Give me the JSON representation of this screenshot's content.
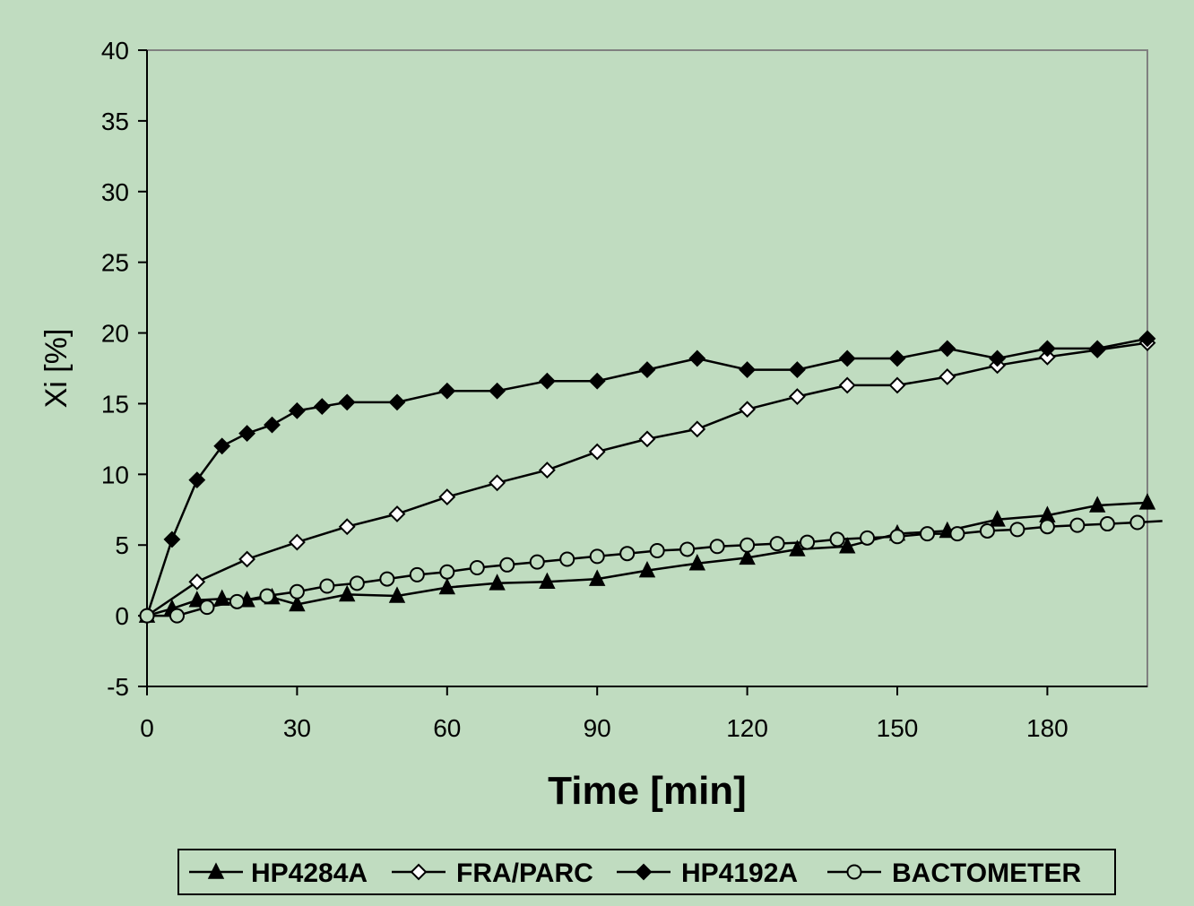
{
  "colors": {
    "background": "#c0dcc0",
    "plot_background": "#c0dcc0",
    "ink": "#000000",
    "gridline": "#808080"
  },
  "chart_data": {
    "type": "line",
    "title": "",
    "xlabel": "Time [min]",
    "ylabel": "Xi [%]",
    "xlim": [
      0,
      200
    ],
    "ylim": [
      -5,
      40
    ],
    "x_ticks": [
      0,
      30,
      60,
      90,
      120,
      150,
      180
    ],
    "y_ticks": [
      -5,
      0,
      5,
      10,
      15,
      20,
      25,
      30,
      35,
      40
    ],
    "x_tick_labels": [
      "0",
      "30",
      "60",
      "90",
      "120",
      "150",
      "180"
    ],
    "y_tick_labels": [
      "-5",
      "0",
      "5",
      "10",
      "15",
      "20",
      "25",
      "30",
      "35",
      "40"
    ],
    "grid": false,
    "legend_position": "bottom",
    "series": [
      {
        "name": "HP4284A",
        "marker": "filled-triangle",
        "points": [
          [
            0,
            0
          ],
          [
            5,
            0.5
          ],
          [
            10,
            1.1
          ],
          [
            15,
            1.2
          ],
          [
            20,
            1.1
          ],
          [
            25,
            1.3
          ],
          [
            30,
            0.8
          ],
          [
            40,
            1.5
          ],
          [
            50,
            1.4
          ],
          [
            60,
            2.0
          ],
          [
            70,
            2.3
          ],
          [
            80,
            2.4
          ],
          [
            90,
            2.6
          ],
          [
            100,
            3.2
          ],
          [
            110,
            3.7
          ],
          [
            120,
            4.1
          ],
          [
            130,
            4.7
          ],
          [
            140,
            4.9
          ],
          [
            150,
            5.8
          ],
          [
            160,
            6.0
          ],
          [
            170,
            6.8
          ],
          [
            180,
            7.1
          ],
          [
            190,
            7.8
          ],
          [
            200,
            8.0
          ]
        ]
      },
      {
        "name": "FRA/PARC",
        "marker": "open-diamond",
        "points": [
          [
            0,
            0
          ],
          [
            10,
            2.4
          ],
          [
            20,
            4.0
          ],
          [
            30,
            5.2
          ],
          [
            40,
            6.3
          ],
          [
            50,
            7.2
          ],
          [
            60,
            8.4
          ],
          [
            70,
            9.4
          ],
          [
            80,
            10.3
          ],
          [
            90,
            11.6
          ],
          [
            100,
            12.5
          ],
          [
            110,
            13.2
          ],
          [
            120,
            14.6
          ],
          [
            130,
            15.5
          ],
          [
            140,
            16.3
          ],
          [
            150,
            16.3
          ],
          [
            160,
            16.9
          ],
          [
            170,
            17.7
          ],
          [
            180,
            18.3
          ],
          [
            190,
            18.8
          ],
          [
            200,
            19.3
          ]
        ]
      },
      {
        "name": "HP4192A",
        "marker": "filled-diamond",
        "points": [
          [
            0,
            0
          ],
          [
            5,
            5.4
          ],
          [
            10,
            9.6
          ],
          [
            15,
            12.0
          ],
          [
            20,
            12.9
          ],
          [
            25,
            13.5
          ],
          [
            30,
            14.5
          ],
          [
            35,
            14.8
          ],
          [
            40,
            15.1
          ],
          [
            50,
            15.1
          ],
          [
            60,
            15.9
          ],
          [
            70,
            15.9
          ],
          [
            80,
            16.6
          ],
          [
            90,
            16.6
          ],
          [
            100,
            17.4
          ],
          [
            110,
            18.2
          ],
          [
            120,
            17.4
          ],
          [
            130,
            17.4
          ],
          [
            140,
            18.2
          ],
          [
            150,
            18.2
          ],
          [
            160,
            18.9
          ],
          [
            170,
            18.2
          ],
          [
            180,
            18.9
          ],
          [
            190,
            18.9
          ],
          [
            200,
            19.6
          ]
        ]
      },
      {
        "name": "BACTOMETER",
        "marker": "open-circle",
        "points": [
          [
            0,
            0
          ],
          [
            6,
            0
          ],
          [
            12,
            0.6
          ],
          [
            18,
            1.0
          ],
          [
            24,
            1.4
          ],
          [
            30,
            1.7
          ],
          [
            36,
            2.1
          ],
          [
            42,
            2.3
          ],
          [
            48,
            2.6
          ],
          [
            54,
            2.9
          ],
          [
            60,
            3.1
          ],
          [
            66,
            3.4
          ],
          [
            72,
            3.6
          ],
          [
            78,
            3.8
          ],
          [
            84,
            4.0
          ],
          [
            90,
            4.2
          ],
          [
            96,
            4.4
          ],
          [
            102,
            4.6
          ],
          [
            108,
            4.7
          ],
          [
            114,
            4.9
          ],
          [
            120,
            5.0
          ],
          [
            126,
            5.1
          ],
          [
            132,
            5.2
          ],
          [
            138,
            5.4
          ],
          [
            144,
            5.5
          ],
          [
            150,
            5.6
          ],
          [
            156,
            5.8
          ],
          [
            162,
            5.8
          ],
          [
            168,
            6.0
          ],
          [
            174,
            6.1
          ],
          [
            180,
            6.3
          ],
          [
            186,
            6.4
          ],
          [
            192,
            6.5
          ],
          [
            198,
            6.6
          ],
          [
            203,
            6.7
          ]
        ]
      }
    ]
  }
}
